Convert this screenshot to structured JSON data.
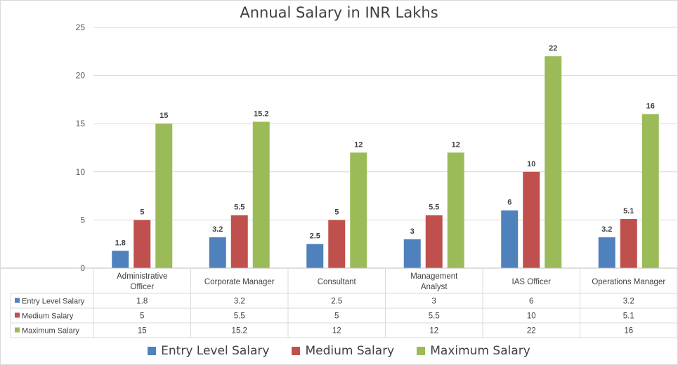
{
  "chart_data": {
    "type": "bar",
    "title": "Annual Salary in INR Lakhs",
    "xlabel": "",
    "ylabel": "",
    "ylim": [
      0,
      25
    ],
    "yticks": [
      0,
      5,
      10,
      15,
      20,
      25
    ],
    "grid": true,
    "legend_position": "bottom",
    "categories": [
      "Administrative Officer",
      "Corporate Manager",
      "Consultant",
      "Management Analyst",
      "IAS Officer",
      "Operations Manager"
    ],
    "series": [
      {
        "name": "Entry Level Salary",
        "color": "#4f81bd",
        "values": [
          1.8,
          3.2,
          2.5,
          3,
          6,
          3.2
        ]
      },
      {
        "name": "Medium Salary",
        "color": "#c0504d",
        "values": [
          5,
          5.5,
          5,
          5.5,
          10,
          5.1
        ]
      },
      {
        "name": "Maximum Salary",
        "color": "#9bbb59",
        "values": [
          15,
          15.2,
          12,
          12,
          22,
          16
        ]
      }
    ]
  }
}
